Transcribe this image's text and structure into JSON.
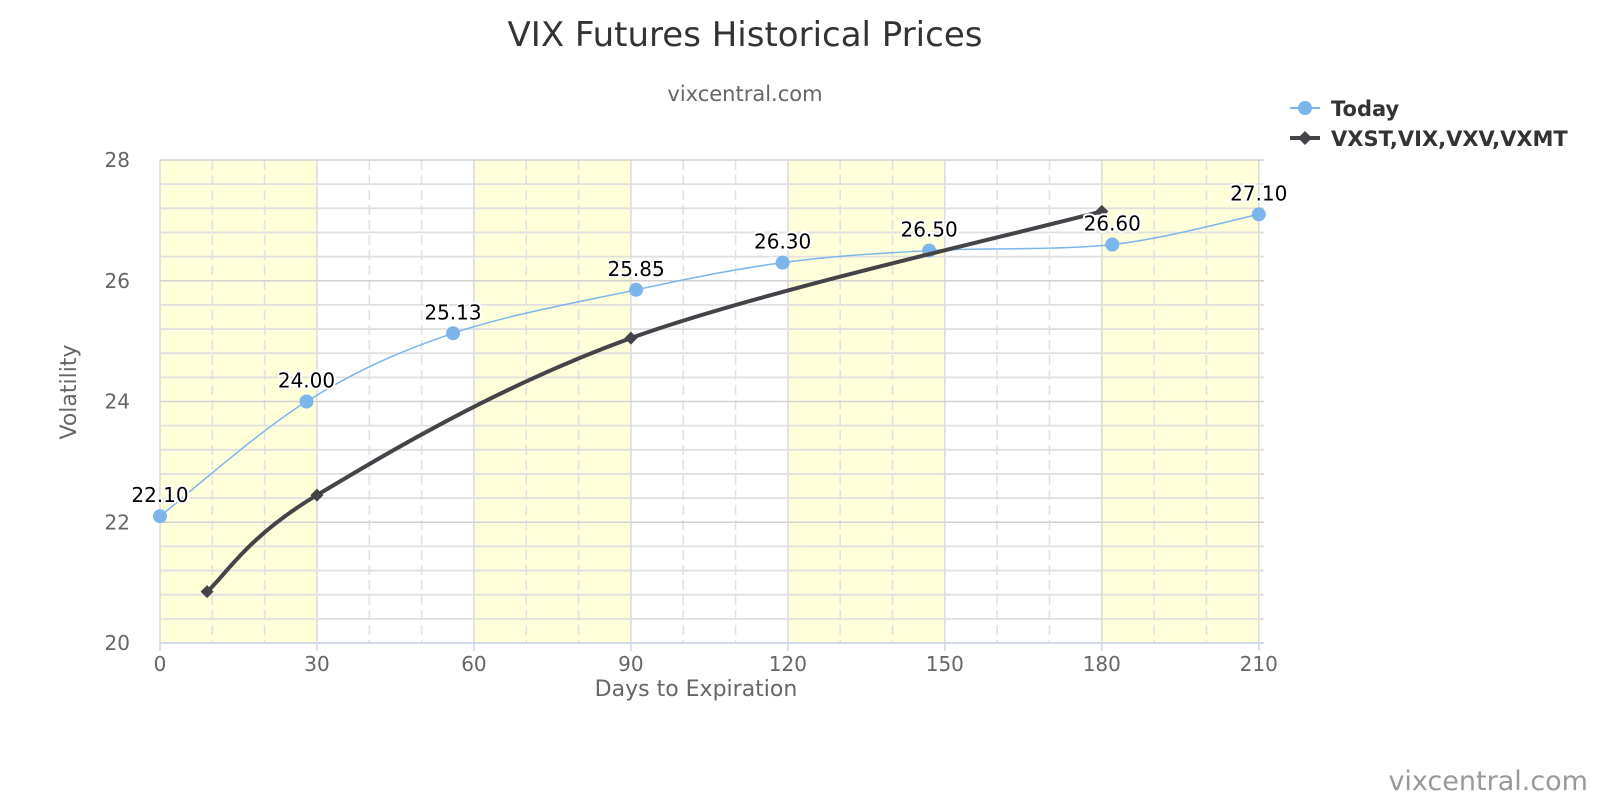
{
  "chart_data": {
    "type": "line",
    "title": "VIX Futures Historical Prices",
    "subtitle": "vixcentral.com",
    "xlabel": "Days to Expiration",
    "ylabel": "Volatility",
    "xlim": [
      0,
      211
    ],
    "ylim": [
      20,
      28
    ],
    "x_ticks": [
      0,
      30,
      60,
      90,
      120,
      150,
      180,
      210
    ],
    "y_ticks": [
      20,
      22,
      24,
      26,
      28
    ],
    "x_minor_step": 10,
    "y_minor_step": 0.4,
    "grid": true,
    "highlight_bands": [
      [
        0,
        30
      ],
      [
        60,
        90
      ],
      [
        120,
        150
      ],
      [
        180,
        210
      ]
    ],
    "legend_position": "top-right",
    "credit": "vixcentral.com",
    "series": [
      {
        "name": "Today",
        "color": "#7cb5ec",
        "marker": "circle",
        "line_width": 1.5,
        "x": [
          0,
          28,
          56,
          91,
          119,
          147,
          182,
          210
        ],
        "y": [
          22.1,
          24.0,
          25.13,
          25.85,
          26.3,
          26.5,
          26.6,
          27.1
        ],
        "labels": [
          "22.10",
          "24.00",
          "25.13",
          "25.85",
          "26.30",
          "26.50",
          "26.60",
          "27.10"
        ]
      },
      {
        "name": "VXST,VIX,VXV,VXMT",
        "color": "#434348",
        "marker": "diamond",
        "line_width": 4,
        "x": [
          9,
          30,
          90,
          180
        ],
        "y": [
          20.85,
          22.45,
          25.05,
          27.15
        ],
        "labels": []
      }
    ]
  }
}
